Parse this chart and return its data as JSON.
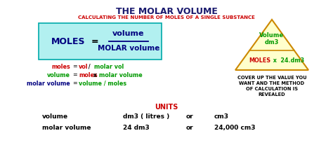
{
  "title": "THE MOLAR VOLUME",
  "subtitle": "CALCULATING THE NUMBER OF MOLES OF A SINGLE SUBSTANCE",
  "title_color": "#1a1a6e",
  "subtitle_color": "#cc0000",
  "bg_color": "#ffffff",
  "box_bg": "#b2f0f0",
  "box_border": "#00aaaa",
  "formula_moles": "MOLES",
  "formula_eq": "=",
  "formula_num": "volume",
  "formula_den": "MOLAR volume",
  "formula_color": "#000080",
  "eq1_left": "moles",
  "eq1_left_color": "#cc0000",
  "eq1_right": "vol / molar vol",
  "eq1_right_parts": [
    "vol",
    " / ",
    "molar vol"
  ],
  "eq1_right_colors": [
    "#cc0000",
    "#000000",
    "#009900"
  ],
  "eq2_left": "volume",
  "eq2_left_color": "#009900",
  "eq2_right_parts": [
    "moles",
    " x ",
    "molar volume"
  ],
  "eq2_right_colors": [
    "#cc0000",
    "#000000",
    "#009900"
  ],
  "eq3_left": "molar volume",
  "eq3_left_color": "#000080",
  "eq3_right": "volume / moles",
  "eq3_right_color": "#009900",
  "triangle_bg": "#ffffcc",
  "triangle_border": "#cc8800",
  "tri_top_text": "Volume",
  "tri_top_text2": "dm3",
  "tri_top_color": "#009900",
  "tri_bot_left": "MOLES",
  "tri_bot_left_color": "#cc0000",
  "tri_bot_right": " x  24.dm3",
  "tri_bot_right_color": "#009900",
  "tri_caption": "COVER UP THE VALUE YOU\nWANT AND THE METHOD\nOF CALCULATION IS\nREVEALED",
  "tri_caption_color": "#000000",
  "units_title": "UNITS",
  "units_title_color": "#cc0000",
  "units_rows": [
    [
      "volume",
      "dm3 ( litres )",
      "or",
      "cm3"
    ],
    [
      "molar volume",
      "24 dm3",
      "or",
      "24,000 cm3"
    ]
  ]
}
